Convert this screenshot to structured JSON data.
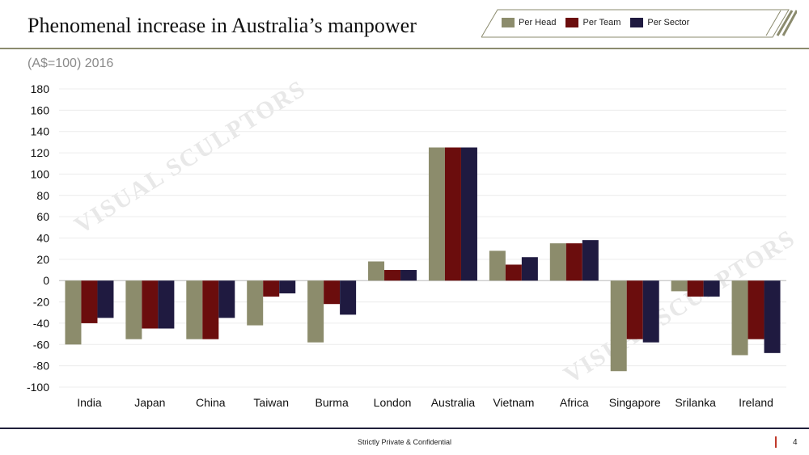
{
  "header": {
    "title": "Phenomenal increase in Australia’s manpower",
    "subtitle": "(A$=100) 2016"
  },
  "watermark": "VISUAL SCULPTORS",
  "footer": {
    "text": "Strictly Private & Confidential",
    "page": "4"
  },
  "colors": {
    "per_head": "#8c8c6c",
    "per_team": "#6b0d0d",
    "per_sector": "#1f1a40",
    "accent": "#c0392b"
  },
  "chart_data": {
    "type": "bar",
    "categories": [
      "India",
      "Japan",
      "China",
      "Taiwan",
      "Burma",
      "London",
      "Australia",
      "Vietnam",
      "Africa",
      "Singapore",
      "Srilanka",
      "Ireland"
    ],
    "series": [
      {
        "name": "Per Head",
        "values": [
          -60,
          -55,
          -55,
          -42,
          -58,
          18,
          125,
          28,
          35,
          -85,
          -10,
          -70
        ]
      },
      {
        "name": "Per Team",
        "values": [
          -40,
          -45,
          -55,
          -15,
          -22,
          10,
          125,
          15,
          35,
          -55,
          -15,
          -55
        ]
      },
      {
        "name": "Per Sector",
        "values": [
          -35,
          -45,
          -35,
          -12,
          -32,
          10,
          125,
          22,
          38,
          -58,
          -15,
          -68
        ]
      }
    ],
    "ylim": [
      -100,
      180
    ],
    "yticks": [
      180,
      160,
      140,
      120,
      100,
      80,
      60,
      40,
      20,
      0,
      -20,
      -40,
      -60,
      -80,
      -100
    ],
    "grid": true,
    "legend": "top-right"
  }
}
